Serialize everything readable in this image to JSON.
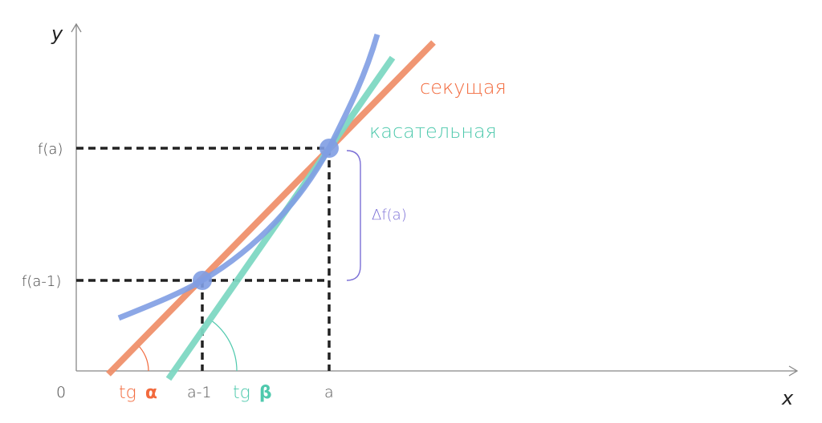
{
  "axes": {
    "y_label": "y",
    "x_label": "x",
    "origin_label": "0"
  },
  "y_ticks": {
    "fa": "f(a)",
    "fa1": "f(a-1)"
  },
  "x_ticks": {
    "a1": "a-1",
    "a": "a"
  },
  "angles": {
    "alpha_prefix": "tg",
    "alpha": "α",
    "beta_prefix": "tg",
    "beta": "β"
  },
  "legend": {
    "secant": "секущая",
    "tangent": "касательная",
    "delta": "Δf(a)"
  },
  "colors": {
    "secant": "#f0916c",
    "secant_text": "#f26a3d",
    "tangent": "#7fd9c4",
    "tangent_text": "#4fc9ad",
    "curve": "#7f9de3",
    "delta": "#7b6fd6",
    "axis": "#888888",
    "dash": "#222222"
  }
}
